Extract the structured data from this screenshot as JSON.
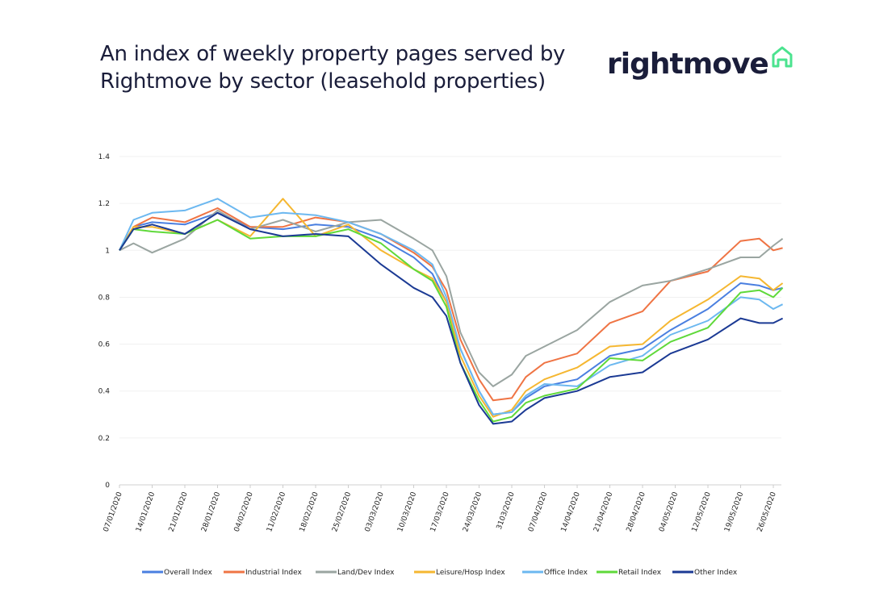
{
  "header": {
    "title": "An index of weekly property pages served by Rightmove by sector (leasehold properties)",
    "logo_text": "rightmove",
    "logo_accent": "#4be38f",
    "brand_color": "#1a1d3a"
  },
  "chart_data": {
    "type": "line",
    "title": "An index of weekly property pages served by Rightmove by sector (leasehold properties)",
    "xlabel": "",
    "ylabel": "",
    "ylim": [
      0,
      1.4
    ],
    "yticks": [
      0,
      0.2,
      0.4,
      0.6,
      0.8,
      1,
      1.2,
      1.4
    ],
    "ytick_labels": [
      "0",
      "0.2",
      "0.4",
      "0.6",
      "0.8",
      "1",
      "1.2",
      "1.4"
    ],
    "xtick_labels": [
      "07/01/2020",
      "14/01/2020",
      "21/01/2020",
      "28/01/2020",
      "04/02/2020",
      "11/02/2020",
      "18/02/2020",
      "25/02/2020",
      "03/03/2020",
      "10/03/2020",
      "17/03/2020",
      "24/03/2020",
      "3103/2020",
      "07/04/2020",
      "14/04/2020",
      "21/04/2020",
      "28/04/2020",
      "04/05/2020",
      "12/05/2020",
      "19/05/2020",
      "26/05/2020"
    ],
    "grid": true,
    "legend_position": "bottom",
    "x": [
      "2020-01-07",
      "2020-01-10",
      "2020-01-14",
      "2020-01-21",
      "2020-01-28",
      "2020-02-04",
      "2020-02-11",
      "2020-02-18",
      "2020-02-25",
      "2020-03-03",
      "2020-03-10",
      "2020-03-14",
      "2020-03-17",
      "2020-03-20",
      "2020-03-24",
      "2020-03-27",
      "2020-03-31",
      "2020-04-03",
      "2020-04-07",
      "2020-04-14",
      "2020-04-21",
      "2020-04-28",
      "2020-05-04",
      "2020-05-12",
      "2020-05-19",
      "2020-05-23",
      "2020-05-26",
      "2020-05-28"
    ],
    "series": [
      {
        "name": "Overall Index",
        "color": "#4a7fe0",
        "values": [
          1.0,
          1.1,
          1.12,
          1.11,
          1.16,
          1.1,
          1.09,
          1.11,
          1.1,
          1.05,
          0.97,
          0.9,
          0.78,
          0.58,
          0.4,
          0.3,
          0.31,
          0.37,
          0.42,
          0.45,
          0.55,
          0.58,
          0.66,
          0.75,
          0.86,
          0.85,
          0.83,
          0.84
        ]
      },
      {
        "name": "Industrial Index",
        "color": "#ef7444",
        "values": [
          1.0,
          1.1,
          1.14,
          1.12,
          1.18,
          1.1,
          1.1,
          1.14,
          1.12,
          1.07,
          0.99,
          0.93,
          0.83,
          0.62,
          0.45,
          0.36,
          0.37,
          0.46,
          0.52,
          0.56,
          0.69,
          0.74,
          0.87,
          0.91,
          1.04,
          1.05,
          1.0,
          1.01
        ]
      },
      {
        "name": "Land/Dev Index",
        "color": "#9aa5a1",
        "values": [
          1.0,
          1.03,
          0.99,
          1.05,
          1.17,
          1.09,
          1.13,
          1.08,
          1.12,
          1.13,
          1.05,
          1.0,
          0.89,
          0.65,
          0.48,
          0.42,
          0.47,
          0.55,
          0.59,
          0.66,
          0.78,
          0.85,
          0.87,
          0.92,
          0.97,
          0.97,
          1.02,
          1.05
        ]
      },
      {
        "name": "Leisure/Hosp Index",
        "color": "#f5b731",
        "values": [
          1.0,
          1.1,
          1.1,
          1.07,
          1.13,
          1.06,
          1.22,
          1.06,
          1.11,
          1.0,
          0.92,
          0.88,
          0.78,
          0.55,
          0.38,
          0.29,
          0.32,
          0.4,
          0.45,
          0.5,
          0.59,
          0.6,
          0.7,
          0.79,
          0.89,
          0.88,
          0.83,
          0.86
        ]
      },
      {
        "name": "Office Index",
        "color": "#6cb8f0",
        "values": [
          1.0,
          1.13,
          1.16,
          1.17,
          1.22,
          1.14,
          1.16,
          1.15,
          1.12,
          1.07,
          1.0,
          0.94,
          0.8,
          0.58,
          0.4,
          0.3,
          0.31,
          0.38,
          0.43,
          0.42,
          0.51,
          0.55,
          0.64,
          0.7,
          0.8,
          0.79,
          0.75,
          0.77
        ]
      },
      {
        "name": "Retail Index",
        "color": "#5fd93a",
        "values": [
          1.0,
          1.09,
          1.08,
          1.07,
          1.13,
          1.05,
          1.06,
          1.06,
          1.09,
          1.03,
          0.92,
          0.87,
          0.76,
          0.52,
          0.36,
          0.27,
          0.29,
          0.35,
          0.38,
          0.41,
          0.54,
          0.53,
          0.61,
          0.67,
          0.82,
          0.83,
          0.8,
          0.84
        ]
      },
      {
        "name": "Other Index",
        "color": "#1b3a94",
        "values": [
          1.0,
          1.09,
          1.11,
          1.07,
          1.16,
          1.09,
          1.06,
          1.07,
          1.06,
          0.94,
          0.84,
          0.8,
          0.72,
          0.52,
          0.34,
          0.26,
          0.27,
          0.32,
          0.37,
          0.4,
          0.46,
          0.48,
          0.56,
          0.62,
          0.71,
          0.69,
          0.69,
          0.71
        ]
      }
    ]
  }
}
